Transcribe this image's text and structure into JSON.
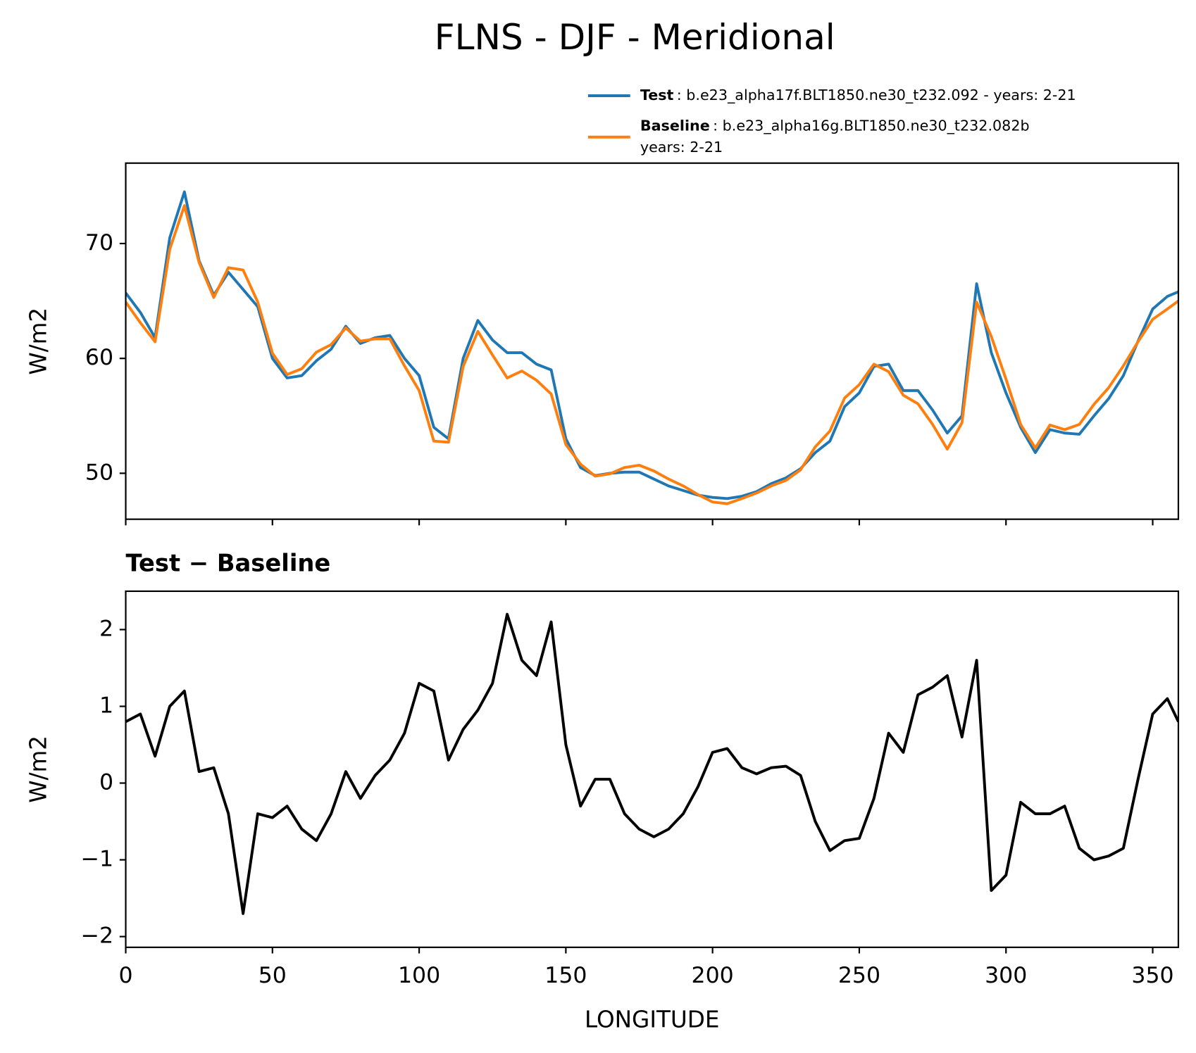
{
  "chart_data": [
    {
      "type": "line",
      "title": "FLNS - DJF - Meridional",
      "ylabel": "W/m2",
      "x": [
        0,
        5,
        10,
        15,
        20,
        25,
        30,
        35,
        40,
        45,
        50,
        55,
        60,
        65,
        70,
        75,
        80,
        85,
        90,
        95,
        100,
        105,
        110,
        115,
        120,
        125,
        130,
        135,
        140,
        145,
        150,
        155,
        160,
        165,
        170,
        175,
        180,
        185,
        190,
        195,
        200,
        205,
        210,
        215,
        220,
        225,
        230,
        235,
        240,
        245,
        250,
        255,
        260,
        265,
        270,
        275,
        280,
        285,
        290,
        295,
        300,
        305,
        310,
        315,
        320,
        325,
        330,
        335,
        340,
        345,
        350,
        355,
        358.75
      ],
      "series": [
        {
          "name": "Test",
          "description": [
            ": b.e23_alpha17f.BLT1850.ne30_t232.092 - years: 2-21"
          ],
          "color": "#1f77b4",
          "values": [
            65.7,
            64.0,
            61.8,
            70.5,
            74.5,
            68.5,
            65.5,
            67.5,
            66,
            64.5,
            60,
            58.3,
            58.5,
            59.8,
            60.8,
            62.8,
            61.3,
            61.8,
            62,
            60,
            58.5,
            54,
            53,
            60,
            63.3,
            61.6,
            60.5,
            60.5,
            59.5,
            59,
            53,
            50.5,
            49.8,
            50,
            50.1,
            50.1,
            49.5,
            48.9,
            48.5,
            48.1,
            47.9,
            47.8,
            48,
            48.4,
            49.1,
            49.6,
            50.4,
            51.8,
            52.8,
            55.8,
            57,
            59.3,
            59.5,
            57.2,
            57.2,
            55.5,
            53.5,
            55,
            66.5,
            60.5,
            57,
            54,
            51.8,
            53.8,
            53.5,
            53.4,
            55,
            56.5,
            58.5,
            61.5,
            64.3,
            65.4,
            65.8
          ]
        },
        {
          "name": "Baseline",
          "description": [
            ": b.e23_alpha16g.BLT1850.ne30_t232.082b",
            "years: 2-21"
          ],
          "color": "#ff7f0e",
          "values": [
            64.9,
            63.1,
            61.45,
            69.5,
            73.3,
            68.35,
            65.3,
            67.9,
            67.7,
            64.9,
            60.45,
            58.6,
            59.1,
            60.55,
            61.2,
            62.65,
            61.5,
            61.7,
            61.7,
            59.35,
            57.2,
            52.8,
            52.7,
            59.3,
            62.35,
            60.3,
            58.3,
            58.9,
            58.1,
            56.9,
            52.5,
            50.8,
            49.75,
            49.95,
            50.5,
            50.7,
            50.2,
            49.5,
            48.9,
            48.15,
            47.5,
            47.35,
            47.8,
            48.28,
            48.9,
            49.38,
            50.3,
            52.3,
            53.68,
            56.55,
            57.72,
            59.5,
            58.85,
            56.8,
            56.05,
            54.25,
            52.1,
            54.4,
            64.9,
            61.9,
            58.2,
            54.25,
            52.2,
            54.2,
            53.8,
            54.25,
            56,
            57.45,
            59.35,
            61.45,
            63.4,
            64.3,
            65
          ]
        }
      ],
      "xlim": [
        0,
        358.75
      ],
      "xticks": [
        0,
        50,
        100,
        150,
        200,
        250,
        300,
        350
      ],
      "ylim": [
        46,
        77
      ],
      "yticks": [
        50,
        60,
        70
      ],
      "legend": "upper right"
    },
    {
      "type": "line",
      "title": "Test − Baseline",
      "ylabel": "W/m2",
      "xlabel": "LONGITUDE",
      "x": [
        0,
        5,
        10,
        15,
        20,
        25,
        30,
        35,
        40,
        45,
        50,
        55,
        60,
        65,
        70,
        75,
        80,
        85,
        90,
        95,
        100,
        105,
        110,
        115,
        120,
        125,
        130,
        135,
        140,
        145,
        150,
        155,
        160,
        165,
        170,
        175,
        180,
        185,
        190,
        195,
        200,
        205,
        210,
        215,
        220,
        225,
        230,
        235,
        240,
        245,
        250,
        255,
        260,
        265,
        270,
        275,
        280,
        285,
        290,
        295,
        300,
        305,
        310,
        315,
        320,
        325,
        330,
        335,
        340,
        345,
        350,
        355,
        358.75
      ],
      "series": [
        {
          "color": "#000000",
          "values": [
            0.8,
            0.9,
            0.35,
            1.0,
            1.2,
            0.15,
            0.2,
            -0.4,
            -1.7,
            -0.4,
            -0.45,
            -0.3,
            -0.6,
            -0.75,
            -0.4,
            0.15,
            -0.2,
            0.1,
            0.3,
            0.65,
            1.3,
            1.2,
            0.3,
            0.7,
            0.95,
            1.3,
            2.2,
            1.6,
            1.4,
            2.1,
            0.5,
            -0.3,
            0.05,
            0.05,
            -0.4,
            -0.6,
            -0.7,
            -0.6,
            -0.4,
            -0.05,
            0.4,
            0.45,
            0.2,
            0.12,
            0.2,
            0.22,
            0.1,
            -0.5,
            -0.88,
            -0.75,
            -0.72,
            -0.2,
            0.65,
            0.4,
            1.15,
            1.25,
            1.4,
            0.6,
            1.6,
            -1.4,
            -1.2,
            -0.25,
            -0.4,
            -0.4,
            -0.3,
            -0.85,
            -1.0,
            -0.95,
            -0.85,
            0.05,
            0.9,
            1.1,
            0.8
          ]
        }
      ],
      "xlim": [
        0,
        358.75
      ],
      "xticks": [
        0,
        50,
        100,
        150,
        200,
        250,
        300,
        350
      ],
      "ylim": [
        -2.14,
        2.5
      ],
      "yticks": [
        {
          "value": -2,
          "label": "−2"
        },
        {
          "value": -1,
          "label": "−1"
        },
        0,
        1,
        2
      ]
    }
  ]
}
